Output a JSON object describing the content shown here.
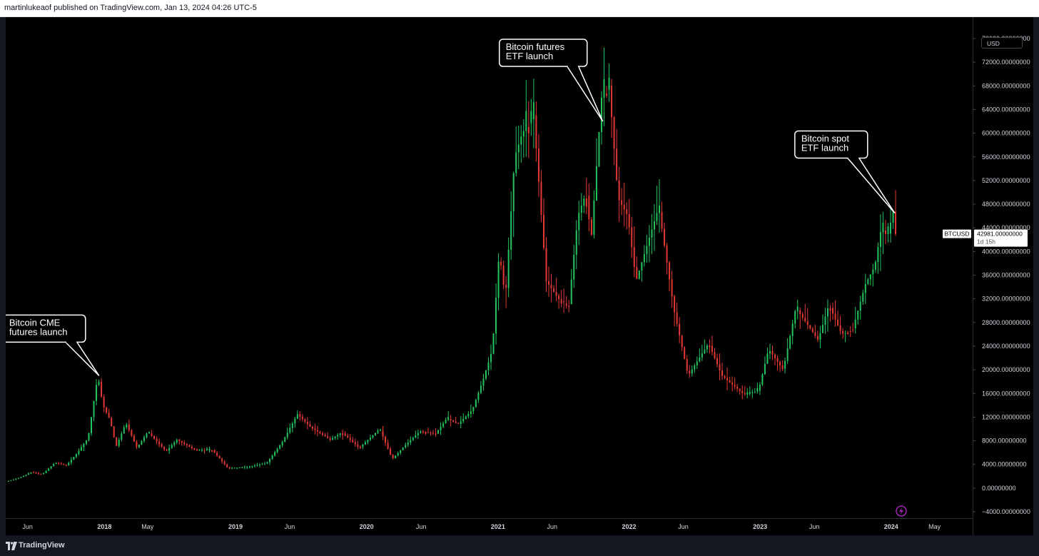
{
  "header": {
    "publisher": "martinlukeaof published on TradingView.com, Jan 13, 2024 04:26 UTC-5"
  },
  "currency_label": "USD",
  "price_badge": {
    "symbol": "BTCUSD",
    "price": "42981.00000000",
    "countdown": "1d 15h"
  },
  "footer": {
    "brand": "TradingView"
  },
  "colors": {
    "up": "#22c55e",
    "down": "#e53935",
    "background": "#000000",
    "axis_text": "#d1d4dc",
    "callout_border": "#ffffff",
    "flash_icon": "#9c27b0"
  },
  "icons": {
    "logo": "tradingview-logo-icon",
    "flash": "lightning-icon"
  },
  "chart_data": {
    "type": "candlestick",
    "symbol": "BTCUSD",
    "interval": "weekly",
    "y_scale": "linear",
    "ylim": [
      -4000,
      76000
    ],
    "grid": false,
    "y_ticks": [
      {
        "value": 76000,
        "label": "76000.00000000"
      },
      {
        "value": 72000,
        "label": "72000.00000000"
      },
      {
        "value": 68000,
        "label": "68000.00000000"
      },
      {
        "value": 64000,
        "label": "64000.00000000"
      },
      {
        "value": 60000,
        "label": "60000.00000000"
      },
      {
        "value": 56000,
        "label": "56000.00000000"
      },
      {
        "value": 52000,
        "label": "52000.00000000"
      },
      {
        "value": 48000,
        "label": "48000.00000000"
      },
      {
        "value": 44000,
        "label": "44000.00000000"
      },
      {
        "value": 40000,
        "label": "40000.00000000"
      },
      {
        "value": 36000,
        "label": "36000.00000000"
      },
      {
        "value": 32000,
        "label": "32000.00000000"
      },
      {
        "value": 28000,
        "label": "28000.00000000"
      },
      {
        "value": 24000,
        "label": "24000.00000000"
      },
      {
        "value": 20000,
        "label": "20000.00000000"
      },
      {
        "value": 16000,
        "label": "16000.00000000"
      },
      {
        "value": 12000,
        "label": "12000.00000000"
      },
      {
        "value": 8000,
        "label": "8000.00000000"
      },
      {
        "value": 4000,
        "label": "4000.00000000"
      },
      {
        "value": 0,
        "label": "0.00000000"
      },
      {
        "value": -4000,
        "label": "−4000.00000000"
      }
    ],
    "x_range": [
      "2017-04-01",
      "2024-08-15"
    ],
    "x_ticks": [
      {
        "date": "2017-06-01",
        "label": "Jun",
        "year": false
      },
      {
        "date": "2018-01-01",
        "label": "2018",
        "year": true
      },
      {
        "date": "2018-05-01",
        "label": "May",
        "year": false
      },
      {
        "date": "2019-01-01",
        "label": "2019",
        "year": true
      },
      {
        "date": "2019-06-01",
        "label": "Jun",
        "year": false
      },
      {
        "date": "2020-01-01",
        "label": "2020",
        "year": true
      },
      {
        "date": "2020-06-01",
        "label": "Jun",
        "year": false
      },
      {
        "date": "2021-01-01",
        "label": "2021",
        "year": true
      },
      {
        "date": "2021-06-01",
        "label": "Jun",
        "year": false
      },
      {
        "date": "2022-01-01",
        "label": "2022",
        "year": true
      },
      {
        "date": "2022-06-01",
        "label": "Jun",
        "year": false
      },
      {
        "date": "2023-01-01",
        "label": "2023",
        "year": true
      },
      {
        "date": "2023-06-01",
        "label": "Jun",
        "year": false
      },
      {
        "date": "2024-01-01",
        "label": "2024",
        "year": true
      },
      {
        "date": "2024-05-01",
        "label": "May",
        "year": false
      }
    ],
    "price_path": [
      [
        "2017-04-05",
        1100
      ],
      [
        "2017-05-10",
        1700
      ],
      [
        "2017-06-15",
        2700
      ],
      [
        "2017-07-15",
        2300
      ],
      [
        "2017-08-20",
        4300
      ],
      [
        "2017-09-20",
        3800
      ],
      [
        "2017-10-20",
        5900
      ],
      [
        "2017-11-20",
        8500
      ],
      [
        "2017-12-17",
        19000
      ],
      [
        "2017-12-31",
        14000
      ],
      [
        "2018-01-20",
        11500
      ],
      [
        "2018-02-06",
        7000
      ],
      [
        "2018-03-05",
        11000
      ],
      [
        "2018-04-05",
        6800
      ],
      [
        "2018-05-05",
        9500
      ],
      [
        "2018-06-25",
        6200
      ],
      [
        "2018-07-25",
        8200
      ],
      [
        "2018-09-15",
        6400
      ],
      [
        "2018-11-01",
        6400
      ],
      [
        "2018-12-15",
        3300
      ],
      [
        "2019-02-01",
        3500
      ],
      [
        "2019-04-01",
        4200
      ],
      [
        "2019-05-15",
        7800
      ],
      [
        "2019-06-26",
        12500
      ],
      [
        "2019-08-01",
        10300
      ],
      [
        "2019-09-25",
        8200
      ],
      [
        "2019-10-27",
        9400
      ],
      [
        "2019-12-15",
        6800
      ],
      [
        "2020-02-10",
        10000
      ],
      [
        "2020-03-16",
        4900
      ],
      [
        "2020-04-20",
        7200
      ],
      [
        "2020-06-01",
        9600
      ],
      [
        "2020-07-15",
        9200
      ],
      [
        "2020-08-15",
        11800
      ],
      [
        "2020-09-15",
        10800
      ],
      [
        "2020-10-25",
        13200
      ],
      [
        "2020-11-25",
        18500
      ],
      [
        "2020-12-20",
        23500
      ],
      [
        "2021-01-08",
        40000
      ],
      [
        "2021-01-25",
        32000
      ],
      [
        "2021-02-20",
        56000
      ],
      [
        "2021-03-13",
        60000
      ],
      [
        "2021-04-14",
        63000
      ],
      [
        "2021-05-19",
        35000
      ],
      [
        "2021-06-22",
        32000
      ],
      [
        "2021-07-20",
        30500
      ],
      [
        "2021-08-15",
        46000
      ],
      [
        "2021-09-07",
        50000
      ],
      [
        "2021-09-21",
        42000
      ],
      [
        "2021-10-20",
        66000
      ],
      [
        "2021-11-10",
        68000
      ],
      [
        "2021-12-05",
        49000
      ],
      [
        "2022-01-01",
        46000
      ],
      [
        "2022-01-24",
        35000
      ],
      [
        "2022-03-28",
        47500
      ],
      [
        "2022-05-10",
        30000
      ],
      [
        "2022-06-18",
        19000
      ],
      [
        "2022-08-14",
        24500
      ],
      [
        "2022-09-20",
        19000
      ],
      [
        "2022-11-21",
        15800
      ],
      [
        "2022-12-31",
        16500
      ],
      [
        "2023-01-28",
        23500
      ],
      [
        "2023-03-10",
        20000
      ],
      [
        "2023-04-14",
        30500
      ],
      [
        "2023-06-15",
        25000
      ],
      [
        "2023-07-15",
        31000
      ],
      [
        "2023-08-20",
        26000
      ],
      [
        "2023-09-20",
        27000
      ],
      [
        "2023-10-25",
        34500
      ],
      [
        "2023-11-20",
        37500
      ],
      [
        "2023-12-08",
        44000
      ],
      [
        "2023-12-25",
        42500
      ],
      [
        "2024-01-11",
        47000
      ],
      [
        "2024-01-13",
        42981
      ]
    ],
    "last_price": 42981,
    "annotations": [
      {
        "text": [
          "Bitcoin CME",
          "futures launch"
        ],
        "date": "2017-12-17",
        "price": 19000
      },
      {
        "text": [
          "Bitcoin futures",
          "ETF launch"
        ],
        "date": "2021-10-20",
        "price": 62000
      },
      {
        "text": [
          "Bitcoin spot",
          "ETF launch"
        ],
        "date": "2024-01-11",
        "price": 46500
      }
    ]
  }
}
